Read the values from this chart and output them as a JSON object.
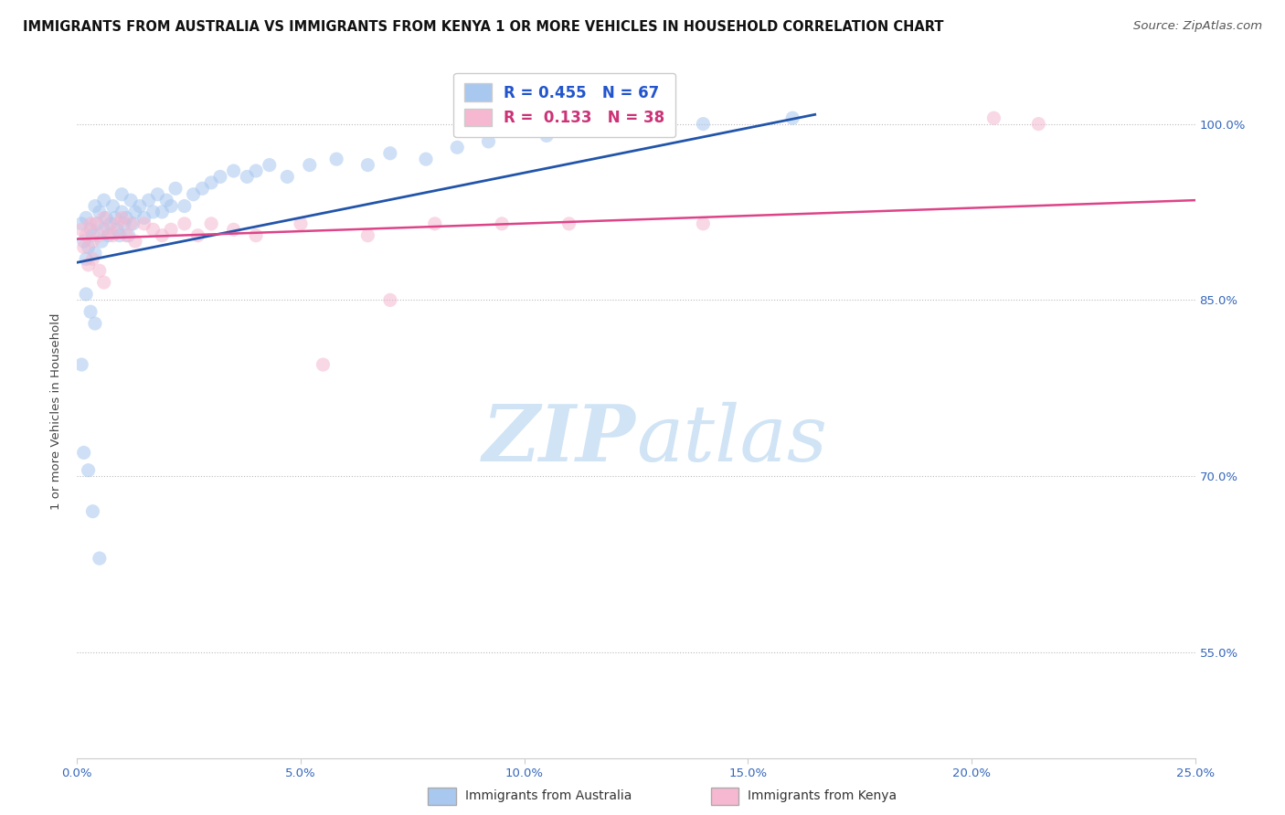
{
  "title": "IMMIGRANTS FROM AUSTRALIA VS IMMIGRANTS FROM KENYA 1 OR MORE VEHICLES IN HOUSEHOLD CORRELATION CHART",
  "source": "Source: ZipAtlas.com",
  "ylabel": "1 or more Vehicles in Household",
  "xlim": [
    0.0,
    25.0
  ],
  "ylim": [
    46.0,
    105.0
  ],
  "x_ticks": [
    0.0,
    5.0,
    10.0,
    15.0,
    20.0,
    25.0
  ],
  "x_tick_labels": [
    "0.0%",
    "5.0%",
    "10.0%",
    "15.0%",
    "20.0%",
    "25.0%"
  ],
  "y_ticks": [
    55.0,
    70.0,
    85.0,
    100.0
  ],
  "y_tick_labels": [
    "55.0%",
    "70.0%",
    "85.0%",
    "100.0%"
  ],
  "legend_labels": [
    "Immigrants from Australia",
    "Immigrants from Kenya"
  ],
  "legend_r_n": [
    {
      "R": "0.455",
      "N": "67"
    },
    {
      "R": "0.133",
      "N": "38"
    }
  ],
  "australia_color": "#a8c8f0",
  "kenya_color": "#f5b8d0",
  "australia_line_color": "#2255aa",
  "kenya_line_color": "#dd4488",
  "watermark_color": "#d0e4f5",
  "dot_size": 120,
  "dot_alpha": 0.55,
  "australia_x": [
    0.1,
    0.15,
    0.2,
    0.2,
    0.25,
    0.3,
    0.35,
    0.4,
    0.4,
    0.45,
    0.5,
    0.55,
    0.6,
    0.6,
    0.65,
    0.7,
    0.75,
    0.8,
    0.85,
    0.9,
    0.95,
    1.0,
    1.0,
    1.05,
    1.1,
    1.15,
    1.2,
    1.25,
    1.3,
    1.4,
    1.5,
    1.6,
    1.7,
    1.8,
    1.9,
    2.0,
    2.1,
    2.2,
    2.4,
    2.6,
    2.8,
    3.0,
    3.2,
    3.5,
    3.8,
    4.0,
    4.3,
    4.7,
    5.2,
    5.8,
    6.5,
    7.0,
    7.8,
    8.5,
    9.2,
    10.5,
    12.0,
    14.0,
    16.0,
    0.2,
    0.3,
    0.4,
    0.1,
    0.15,
    0.25,
    0.35,
    0.5
  ],
  "australia_y": [
    91.5,
    90.0,
    92.0,
    88.5,
    89.5,
    91.0,
    90.5,
    93.0,
    89.0,
    91.5,
    92.5,
    90.0,
    93.5,
    91.0,
    92.0,
    90.5,
    91.5,
    93.0,
    92.0,
    91.0,
    90.5,
    92.5,
    94.0,
    91.5,
    92.0,
    90.5,
    93.5,
    91.5,
    92.5,
    93.0,
    92.0,
    93.5,
    92.5,
    94.0,
    92.5,
    93.5,
    93.0,
    94.5,
    93.0,
    94.0,
    94.5,
    95.0,
    95.5,
    96.0,
    95.5,
    96.0,
    96.5,
    95.5,
    96.5,
    97.0,
    96.5,
    97.5,
    97.0,
    98.0,
    98.5,
    99.0,
    99.5,
    100.0,
    100.5,
    85.5,
    84.0,
    83.0,
    79.5,
    72.0,
    70.5,
    67.0,
    63.0
  ],
  "kenya_x": [
    0.1,
    0.2,
    0.3,
    0.35,
    0.4,
    0.5,
    0.6,
    0.7,
    0.8,
    0.9,
    1.0,
    1.1,
    1.2,
    1.3,
    1.5,
    1.7,
    1.9,
    2.1,
    2.4,
    2.7,
    3.0,
    3.5,
    4.0,
    5.0,
    6.5,
    8.0,
    9.5,
    11.0,
    0.15,
    0.25,
    0.35,
    0.5,
    0.6,
    7.0,
    20.5,
    21.5,
    14.0,
    5.5
  ],
  "kenya_y": [
    91.0,
    90.5,
    91.5,
    90.0,
    91.5,
    90.5,
    92.0,
    91.0,
    90.5,
    91.5,
    92.0,
    90.5,
    91.5,
    90.0,
    91.5,
    91.0,
    90.5,
    91.0,
    91.5,
    90.5,
    91.5,
    91.0,
    90.5,
    91.5,
    90.5,
    91.5,
    91.5,
    91.5,
    89.5,
    88.0,
    88.5,
    87.5,
    86.5,
    85.0,
    100.5,
    100.0,
    91.5,
    79.5
  ],
  "title_fontsize": 10.5,
  "axis_label_fontsize": 9.5,
  "tick_label_fontsize": 9.5,
  "source_fontsize": 9.5
}
